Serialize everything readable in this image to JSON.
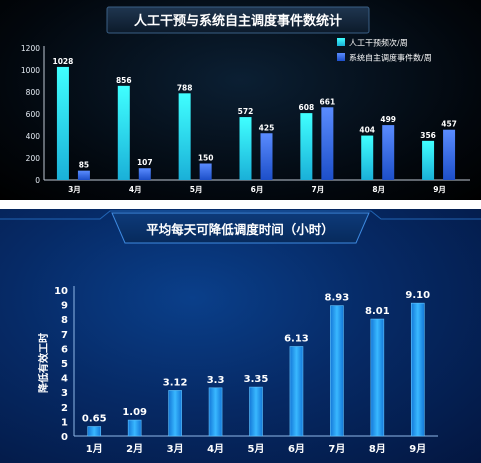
{
  "chart_data": [
    {
      "type": "bar",
      "title": "人工干预与系统自主调度事件数统计",
      "categories": [
        "3月",
        "4月",
        "5月",
        "6月",
        "7月",
        "8月",
        "9月"
      ],
      "series": [
        {
          "name": "人工干预频次/周",
          "values": [
            1028,
            856,
            788,
            572,
            608,
            404,
            356
          ],
          "color": "#2ff0f0"
        },
        {
          "name": "系统自主调度事件数/周",
          "values": [
            85,
            107,
            150,
            425,
            661,
            499,
            457
          ],
          "color": "#2f6fe8"
        }
      ],
      "ylim": [
        0,
        1200
      ],
      "yticks": [
        0,
        200,
        400,
        600,
        800,
        1000,
        1200
      ],
      "legend": "top-right",
      "grid": false
    },
    {
      "type": "bar",
      "title": "平均每天可降低调度时间（小时）",
      "categories": [
        "1月",
        "2月",
        "3月",
        "4月",
        "5月",
        "6月",
        "7月",
        "8月",
        "9月"
      ],
      "values": [
        0.65,
        1.09,
        3.12,
        3.3,
        3.35,
        6.13,
        8.93,
        8.01,
        9.1
      ],
      "value_labels": [
        "0.65",
        "1.09",
        "3.12",
        "3.3",
        "3.35",
        "6.13",
        "8.93",
        "8.01",
        "9.10"
      ],
      "ylabel": "降低有效工时",
      "ylim": [
        0,
        10
      ],
      "yticks": [
        0,
        1,
        2,
        3,
        4,
        5,
        6,
        7,
        8,
        9,
        10
      ],
      "grid": false,
      "color": "#1f8fe8"
    }
  ]
}
